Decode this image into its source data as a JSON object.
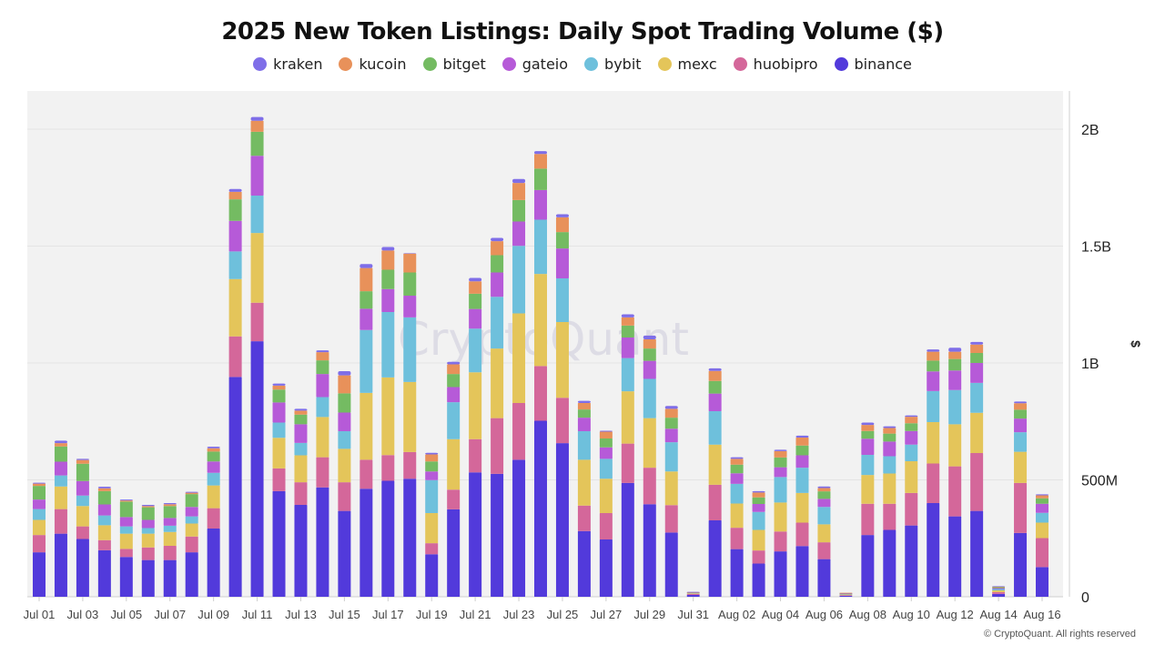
{
  "chart_data": {
    "type": "bar",
    "stacked": true,
    "title": "2025 New Token Listings: Daily Spot Trading Volume ($)",
    "ylabel": "$",
    "xlabel": "",
    "unit": "M",
    "ylim": [
      0,
      2170
    ],
    "y_ticks": [
      {
        "value": 0,
        "label": "0"
      },
      {
        "value": 500,
        "label": "500M"
      },
      {
        "value": 1000,
        "label": "1B"
      },
      {
        "value": 1500,
        "label": "1.5B"
      },
      {
        "value": 2000,
        "label": "2B"
      }
    ],
    "legend_position": "top",
    "grid": true,
    "watermark": "CryptoQuant",
    "categories": [
      "Jul 01",
      "Jul 02",
      "Jul 03",
      "Jul 04",
      "Jul 05",
      "Jul 06",
      "Jul 07",
      "Jul 08",
      "Jul 09",
      "Jul 10",
      "Jul 11",
      "Jul 12",
      "Jul 13",
      "Jul 14",
      "Jul 15",
      "Jul 16",
      "Jul 17",
      "Jul 18",
      "Jul 19",
      "Jul 20",
      "Jul 21",
      "Jul 22",
      "Jul 23",
      "Jul 24",
      "Jul 25",
      "Jul 26",
      "Jul 27",
      "Jul 28",
      "Jul 29",
      "Jul 30",
      "Jul 31",
      "Aug 01",
      "Aug 02",
      "Aug 03",
      "Aug 04",
      "Aug 05",
      "Aug 06",
      "Aug 07",
      "Aug 08",
      "Aug 09",
      "Aug 10",
      "Aug 11",
      "Aug 12",
      "Aug 13",
      "Aug 14",
      "Aug 15",
      "Aug 16"
    ],
    "x_tick_labels": [
      "Jul 01",
      "Jul 03",
      "Jul 05",
      "Jul 07",
      "Jul 09",
      "Jul 11",
      "Jul 13",
      "Jul 15",
      "Jul 17",
      "Jul 19",
      "Jul 21",
      "Jul 23",
      "Jul 25",
      "Jul 27",
      "Jul 29",
      "Jul 31",
      "Aug 02",
      "Aug 04",
      "Aug 06",
      "Aug 08",
      "Aug 10",
      "Aug 12",
      "Aug 14",
      "Aug 16"
    ],
    "legend_order": [
      "kraken",
      "kucoin",
      "bitget",
      "gateio",
      "bybit",
      "mexc",
      "huobipro",
      "binance"
    ],
    "series": [
      {
        "name": "binance",
        "color": "#523adb",
        "values": [
          190,
          270,
          247,
          199,
          170,
          157,
          157,
          190,
          292,
          940,
          1093,
          452,
          393,
          468,
          367,
          462,
          496,
          505,
          182,
          374,
          532,
          526,
          586,
          753,
          657,
          281,
          245,
          487,
          396,
          275,
          8,
          327,
          204,
          142,
          194,
          217,
          161,
          4,
          264,
          286,
          305,
          401,
          344,
          367,
          12,
          273,
          127
        ]
      },
      {
        "name": "huobipro",
        "color": "#d4679a",
        "values": [
          74,
          105,
          54,
          43,
          35,
          54,
          61,
          68,
          87,
          174,
          165,
          97,
          97,
          129,
          123,
          124,
          110,
          114,
          47,
          84,
          142,
          238,
          243,
          234,
          194,
          109,
          113,
          168,
          156,
          117,
          4,
          152,
          91,
          56,
          85,
          100,
          72,
          3,
          134,
          112,
          139,
          169,
          214,
          248,
          8,
          214,
          124
        ]
      },
      {
        "name": "mexc",
        "color": "#e4c55a",
        "values": [
          65,
          97,
          87,
          64,
          65,
          59,
          59,
          55,
          97,
          245,
          298,
          131,
          115,
          172,
          143,
          286,
          332,
          300,
          129,
          216,
          286,
          298,
          383,
          394,
          324,
          196,
          147,
          224,
          212,
          144,
          3,
          172,
          104,
          88,
          124,
          127,
          77,
          3,
          123,
          129,
          136,
          177,
          180,
          172,
          7,
          133,
          66
        ]
      },
      {
        "name": "bybit",
        "color": "#6ec0dc",
        "values": [
          46,
          47,
          45,
          42,
          31,
          24,
          27,
          31,
          54,
          118,
          160,
          65,
          53,
          85,
          75,
          269,
          280,
          276,
          141,
          158,
          187,
          221,
          289,
          232,
          187,
          122,
          85,
          142,
          168,
          125,
          2,
          143,
          84,
          77,
          109,
          108,
          74,
          2,
          86,
          74,
          71,
          133,
          146,
          128,
          6,
          84,
          42
        ]
      },
      {
        "name": "gateio",
        "color": "#b65ad8",
        "values": [
          41,
          59,
          62,
          47,
          40,
          35,
          33,
          40,
          49,
          131,
          170,
          86,
          80,
          99,
          80,
          91,
          98,
          93,
          37,
          65,
          84,
          104,
          104,
          127,
          128,
          58,
          49,
          88,
          77,
          58,
          1,
          75,
          45,
          34,
          42,
          53,
          35,
          2,
          69,
          63,
          58,
          84,
          84,
          85,
          4,
          58,
          39
        ]
      },
      {
        "name": "bitget",
        "color": "#74bb62",
        "values": [
          58,
          65,
          74,
          57,
          66,
          54,
          51,
          55,
          42,
          92,
          103,
          55,
          41,
          58,
          82,
          75,
          83,
          99,
          43,
          56,
          65,
          74,
          92,
          91,
          70,
          35,
          38,
          51,
          53,
          47,
          1,
          54,
          37,
          28,
          42,
          42,
          32,
          2,
          33,
          34,
          33,
          46,
          49,
          43,
          4,
          38,
          23
        ]
      },
      {
        "name": "kucoin",
        "color": "#e8915a",
        "values": [
          10,
          14,
          16,
          12,
          5,
          5,
          8,
          6,
          14,
          32,
          47,
          17,
          17,
          35,
          77,
          99,
          82,
          81,
          30,
          41,
          53,
          60,
          73,
          63,
          63,
          28,
          29,
          35,
          39,
          38,
          1,
          43,
          25,
          21,
          27,
          34,
          14,
          1,
          26,
          24,
          28,
          38,
          31,
          36,
          3,
          28,
          13
        ]
      },
      {
        "name": "kraken",
        "color": "#7f6ee8",
        "values": [
          4,
          11,
          5,
          7,
          4,
          5,
          5,
          4,
          7,
          12,
          16,
          9,
          8,
          8,
          18,
          17,
          15,
          2,
          7,
          11,
          15,
          14,
          17,
          12,
          13,
          9,
          4,
          13,
          16,
          12,
          1,
          11,
          7,
          6,
          6,
          8,
          7,
          0,
          10,
          7,
          6,
          10,
          17,
          11,
          1,
          7,
          4
        ]
      }
    ]
  },
  "footer": "© CryptoQuant. All rights reserved"
}
